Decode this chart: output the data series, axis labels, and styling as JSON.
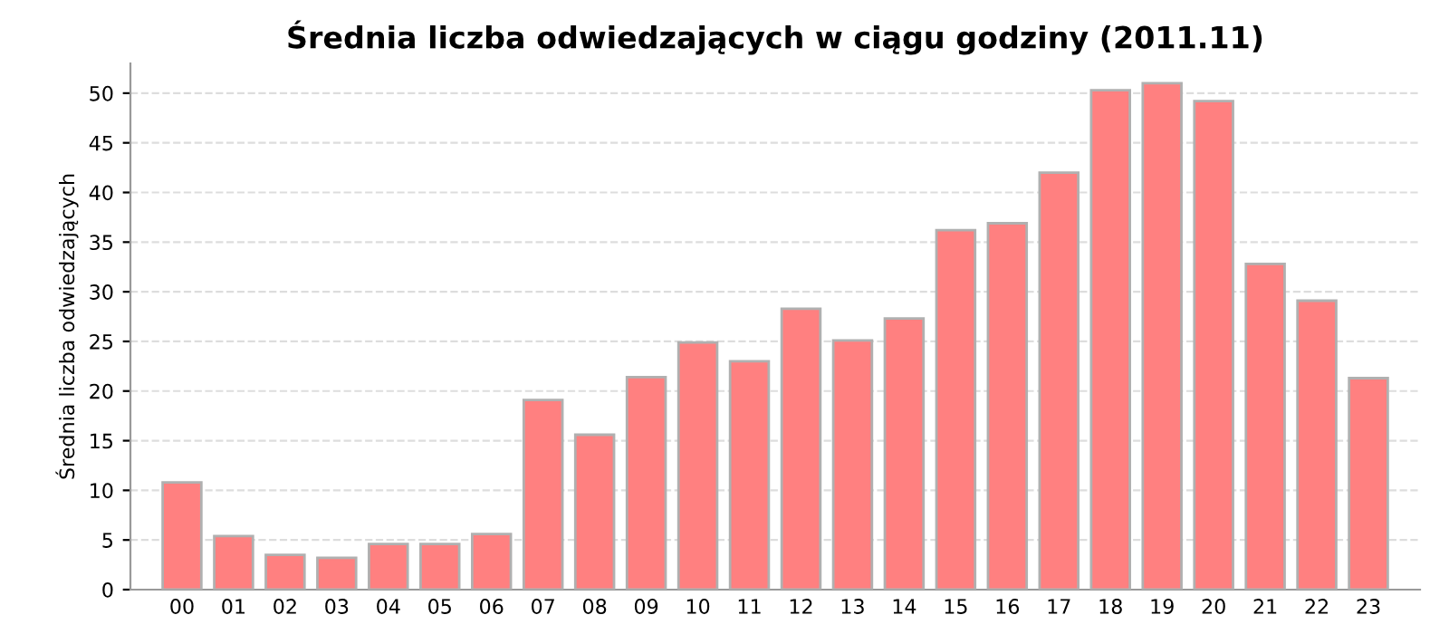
{
  "chart_data": {
    "type": "bar",
    "title": "Średnia liczba odwiedzających w ciągu godziny (2011.11)",
    "ylabel": "Średnia liczba odwiedzających",
    "categories": [
      "00",
      "01",
      "02",
      "03",
      "04",
      "05",
      "06",
      "07",
      "08",
      "09",
      "10",
      "11",
      "12",
      "13",
      "14",
      "15",
      "16",
      "17",
      "18",
      "19",
      "20",
      "21",
      "22",
      "23"
    ],
    "values": [
      10.8,
      5.4,
      3.5,
      3.2,
      4.6,
      4.6,
      5.6,
      19.1,
      15.6,
      21.4,
      24.9,
      23.0,
      28.3,
      25.1,
      27.3,
      36.2,
      36.9,
      42.0,
      50.3,
      51.0,
      49.2,
      32.8,
      29.1,
      21.3
    ],
    "color": "#ff8080",
    "ylim": [
      0,
      53
    ],
    "yticks": [
      0,
      5,
      10,
      15,
      20,
      25,
      30,
      35,
      40,
      45,
      50
    ],
    "grid": "y"
  }
}
